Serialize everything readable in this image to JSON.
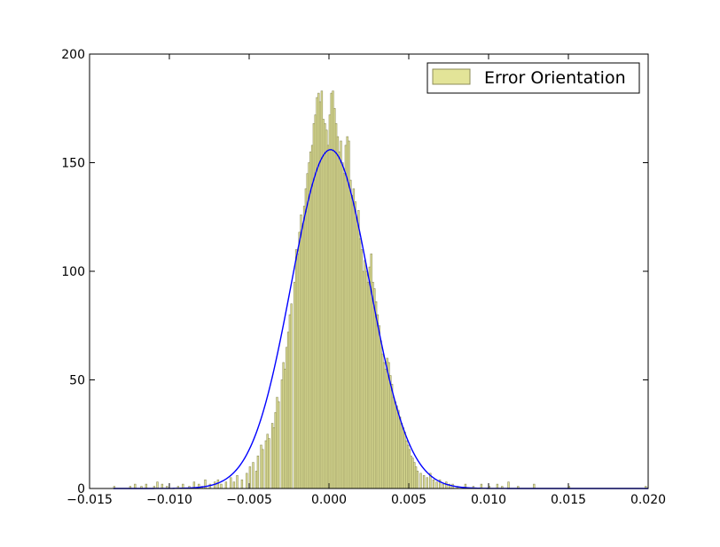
{
  "chart_data": {
    "type": "histogram",
    "title": "",
    "xlabel": "",
    "ylabel": "",
    "xlim": [
      -0.015,
      0.02
    ],
    "ylim": [
      0,
      200
    ],
    "grid": false,
    "xticks": [
      -0.015,
      -0.01,
      -0.005,
      0.0,
      0.005,
      0.01,
      0.015,
      0.02
    ],
    "xtick_labels": [
      "−0.015",
      "−0.010",
      "−0.005",
      "0.000",
      "0.005",
      "0.010",
      "0.015",
      "0.020"
    ],
    "yticks": [
      0,
      50,
      100,
      150,
      200
    ],
    "ytick_labels": [
      "0",
      "50",
      "100",
      "150",
      "200"
    ],
    "legend": {
      "position": "top-right",
      "label": "Error Orientation"
    },
    "series": [
      {
        "name": "Error Orientation",
        "kind": "histogram",
        "fill_color": "#e3e498",
        "edge_color": "#8c8c5a",
        "bins": [
          [
            -0.0135,
            1
          ],
          [
            -0.0125,
            1
          ],
          [
            -0.0122,
            2
          ],
          [
            -0.0118,
            1
          ],
          [
            -0.0115,
            2
          ],
          [
            -0.011,
            1
          ],
          [
            -0.0108,
            3
          ],
          [
            -0.0105,
            2
          ],
          [
            -0.0102,
            1
          ],
          [
            -0.0095,
            1
          ],
          [
            -0.0092,
            2
          ],
          [
            -0.0088,
            1
          ],
          [
            -0.0085,
            3
          ],
          [
            -0.0082,
            2
          ],
          [
            -0.008,
            1
          ],
          [
            -0.0078,
            4
          ],
          [
            -0.0075,
            2
          ],
          [
            -0.0072,
            3
          ],
          [
            -0.007,
            4
          ],
          [
            -0.0068,
            2
          ],
          [
            -0.0065,
            3
          ],
          [
            -0.0062,
            5
          ],
          [
            -0.006,
            3
          ],
          [
            -0.0058,
            6
          ],
          [
            -0.0055,
            4
          ],
          [
            -0.0052,
            7
          ],
          [
            -0.005,
            10
          ],
          [
            -0.0048,
            12
          ],
          [
            -0.0046,
            8
          ],
          [
            -0.0045,
            15
          ],
          [
            -0.0043,
            20
          ],
          [
            -0.0042,
            18
          ],
          [
            -0.004,
            22
          ],
          [
            -0.0039,
            25
          ],
          [
            -0.0038,
            23
          ],
          [
            -0.0036,
            30
          ],
          [
            -0.0035,
            28
          ],
          [
            -0.0034,
            35
          ],
          [
            -0.0033,
            42
          ],
          [
            -0.0032,
            40
          ],
          [
            -0.003,
            50
          ],
          [
            -0.0029,
            58
          ],
          [
            -0.0028,
            55
          ],
          [
            -0.0027,
            65
          ],
          [
            -0.0026,
            72
          ],
          [
            -0.0025,
            80
          ],
          [
            -0.0024,
            85
          ],
          [
            -0.0022,
            95
          ],
          [
            -0.0021,
            110
          ],
          [
            -0.002,
            108
          ],
          [
            -0.0019,
            118
          ],
          [
            -0.0018,
            126
          ],
          [
            -0.0017,
            122
          ],
          [
            -0.0016,
            130
          ],
          [
            -0.0015,
            138
          ],
          [
            -0.0014,
            145
          ],
          [
            -0.0013,
            150
          ],
          [
            -0.0012,
            155
          ],
          [
            -0.0011,
            158
          ],
          [
            -0.001,
            168
          ],
          [
            -0.0009,
            172
          ],
          [
            -0.0008,
            180
          ],
          [
            -0.0007,
            182
          ],
          [
            -0.0006,
            178
          ],
          [
            -0.0005,
            183
          ],
          [
            -0.0004,
            170
          ],
          [
            -0.0003,
            168
          ],
          [
            -0.0002,
            165
          ],
          [
            -0.0001,
            158
          ],
          [
            0.0,
            172
          ],
          [
            0.0001,
            182
          ],
          [
            0.0002,
            183
          ],
          [
            0.0003,
            175
          ],
          [
            0.0004,
            168
          ],
          [
            0.0005,
            162
          ],
          [
            0.0006,
            155
          ],
          [
            0.0007,
            160
          ],
          [
            0.0008,
            150
          ],
          [
            0.0009,
            145
          ],
          [
            0.001,
            158
          ],
          [
            0.0011,
            162
          ],
          [
            0.0012,
            160
          ],
          [
            0.0013,
            142
          ],
          [
            0.0014,
            135
          ],
          [
            0.0015,
            138
          ],
          [
            0.0016,
            132
          ],
          [
            0.0017,
            125
          ],
          [
            0.0018,
            128
          ],
          [
            0.0019,
            115
          ],
          [
            0.002,
            110
          ],
          [
            0.0021,
            100
          ],
          [
            0.0022,
            105
          ],
          [
            0.0023,
            100
          ],
          [
            0.0024,
            95
          ],
          [
            0.0025,
            102
          ],
          [
            0.0026,
            108
          ],
          [
            0.0027,
            95
          ],
          [
            0.0028,
            92
          ],
          [
            0.0029,
            86
          ],
          [
            0.003,
            80
          ],
          [
            0.0031,
            75
          ],
          [
            0.0032,
            68
          ],
          [
            0.0033,
            62
          ],
          [
            0.0034,
            58
          ],
          [
            0.0035,
            55
          ],
          [
            0.0036,
            60
          ],
          [
            0.0037,
            58
          ],
          [
            0.0038,
            52
          ],
          [
            0.0039,
            48
          ],
          [
            0.004,
            42
          ],
          [
            0.0041,
            40
          ],
          [
            0.0042,
            38
          ],
          [
            0.0043,
            36
          ],
          [
            0.0044,
            33
          ],
          [
            0.0045,
            30
          ],
          [
            0.0046,
            28
          ],
          [
            0.0047,
            26
          ],
          [
            0.0048,
            22
          ],
          [
            0.0049,
            20
          ],
          [
            0.005,
            18
          ],
          [
            0.0051,
            15
          ],
          [
            0.0052,
            14
          ],
          [
            0.0053,
            12
          ],
          [
            0.0054,
            10
          ],
          [
            0.0055,
            8
          ],
          [
            0.0057,
            7
          ],
          [
            0.0059,
            6
          ],
          [
            0.0061,
            5
          ],
          [
            0.0063,
            7
          ],
          [
            0.0065,
            4
          ],
          [
            0.0067,
            3
          ],
          [
            0.0069,
            4
          ],
          [
            0.0071,
            2
          ],
          [
            0.0073,
            3
          ],
          [
            0.0075,
            2
          ],
          [
            0.0077,
            2
          ],
          [
            0.008,
            1
          ],
          [
            0.0085,
            2
          ],
          [
            0.009,
            1
          ],
          [
            0.0095,
            2
          ],
          [
            0.01,
            1
          ],
          [
            0.0105,
            2
          ],
          [
            0.0108,
            1
          ],
          [
            0.0112,
            3
          ],
          [
            0.0118,
            1
          ],
          [
            0.0128,
            2
          ],
          [
            0.015,
            1
          ],
          [
            0.0198,
            1
          ]
        ]
      },
      {
        "name": "",
        "kind": "line",
        "color": "#0000ff",
        "description_type": "normal fit",
        "peak": 156,
        "mean": 0.0001,
        "std": 0.00245
      }
    ]
  }
}
